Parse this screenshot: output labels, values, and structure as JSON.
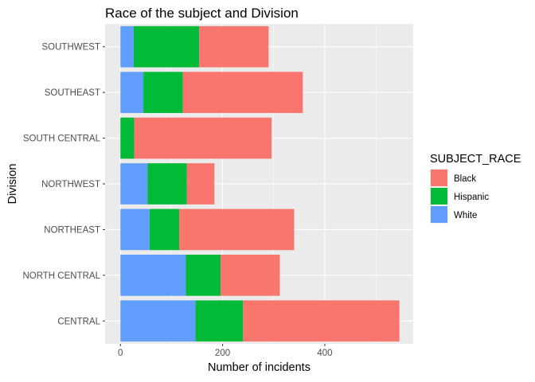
{
  "chart_data": {
    "type": "bar",
    "orientation": "horizontal",
    "stacked": true,
    "title": "Race of the subject and Division",
    "xlabel": "Number of incidents",
    "ylabel": "Division",
    "categories": [
      "CENTRAL",
      "NORTH CENTRAL",
      "NORTHEAST",
      "NORTHWEST",
      "SOUTH CENTRAL",
      "SOUTHEAST",
      "SOUTHWEST"
    ],
    "series": [
      {
        "name": "White",
        "color": "#619CFF",
        "values": [
          147,
          128,
          57,
          53,
          0,
          45,
          26
        ]
      },
      {
        "name": "Hispanic",
        "color": "#00BA38",
        "values": [
          93,
          68,
          58,
          77,
          27,
          77,
          128
        ]
      },
      {
        "name": "Black",
        "color": "#F8766D",
        "values": [
          306,
          116,
          225,
          54,
          269,
          235,
          136
        ]
      }
    ],
    "xlim": [
      -30,
      573
    ],
    "xticks": [
      0,
      200,
      400
    ],
    "grid": true,
    "legend": {
      "title": "SUBJECT_RACE",
      "position": "right",
      "order": [
        "Black",
        "Hispanic",
        "White"
      ]
    }
  }
}
